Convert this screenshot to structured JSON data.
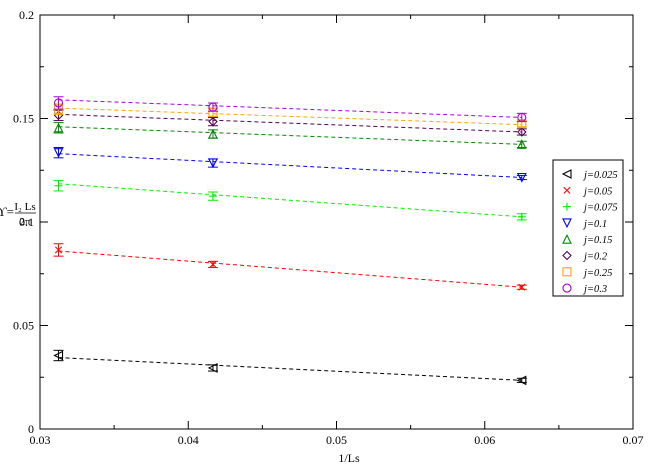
{
  "chart_data": {
    "type": "scatter",
    "xlabel": "1/Ls",
    "ylabel": {
      "prefix": "ϒ=",
      "numerator": "I₂ Ls",
      "denominator": "2π"
    },
    "xlim": [
      0.03,
      0.07
    ],
    "ylim": [
      0,
      0.2
    ],
    "x_ticks": [
      "0.03",
      "0.04",
      "0.05",
      "0.06",
      "0.07"
    ],
    "y_ticks": [
      "0",
      "0.05",
      "0.1",
      "0.15",
      "0.2"
    ],
    "grid": false,
    "legend_position": "right",
    "x": [
      0.03125,
      0.041667,
      0.0625
    ],
    "series": [
      {
        "name": "j=0.025",
        "marker": "triangle-left",
        "color": "#000000",
        "values": [
          0.0355,
          0.0295,
          0.0235
        ],
        "err": [
          0.0025,
          0.0015,
          0.001
        ],
        "fit": [
          0.0345,
          0.0235
        ]
      },
      {
        "name": "j=0.05",
        "marker": "x",
        "color": "#ff0000",
        "values": [
          0.0865,
          0.0795,
          0.0685
        ],
        "err": [
          0.003,
          0.0015,
          0.001
        ],
        "fit": [
          0.086,
          0.0685
        ]
      },
      {
        "name": "j=0.075",
        "marker": "plus",
        "color": "#00ee00",
        "values": [
          0.1175,
          0.1125,
          0.1025
        ],
        "err": [
          0.0025,
          0.002,
          0.0015
        ],
        "fit": [
          0.1185,
          0.1025
        ]
      },
      {
        "name": "j=0.1",
        "marker": "triangle-down",
        "color": "#0000ff",
        "values": [
          0.1335,
          0.1285,
          0.1215
        ],
        "err": [
          0.0025,
          0.002,
          0.001
        ],
        "fit": [
          0.133,
          0.1215
        ]
      },
      {
        "name": "j=0.15",
        "marker": "triangle-up",
        "color": "#008800",
        "values": [
          0.1455,
          0.1425,
          0.1375
        ],
        "err": [
          0.0025,
          0.002,
          0.0015
        ],
        "fit": [
          0.146,
          0.1375
        ]
      },
      {
        "name": "j=0.2",
        "marker": "diamond",
        "color": "#550055",
        "values": [
          0.1515,
          0.1485,
          0.1435
        ],
        "err": [
          0.0025,
          0.002,
          0.0015
        ],
        "fit": [
          0.152,
          0.1435
        ]
      },
      {
        "name": "j=0.25",
        "marker": "square",
        "color": "#ffa500",
        "values": [
          0.1545,
          0.153,
          0.1475
        ],
        "err": [
          0.0025,
          0.002,
          0.0015
        ],
        "fit": [
          0.155,
          0.147
        ]
      },
      {
        "name": "j=0.3",
        "marker": "circle",
        "color": "#aa00dd",
        "values": [
          0.1575,
          0.1555,
          0.1505
        ],
        "err": [
          0.003,
          0.002,
          0.002
        ],
        "fit": [
          0.159,
          0.1505
        ]
      }
    ]
  }
}
